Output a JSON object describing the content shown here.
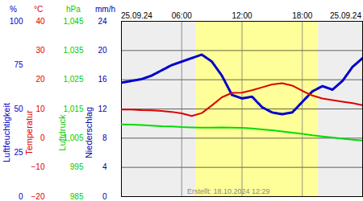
{
  "chart_data": {
    "type": "line",
    "x": [
      0,
      1,
      2,
      3,
      4,
      5,
      6,
      7,
      8,
      9,
      10,
      11,
      12,
      13,
      14,
      15,
      16,
      17,
      18,
      19,
      20,
      21,
      22,
      23,
      24
    ],
    "xlim": [
      0,
      24
    ],
    "xticks": [
      {
        "value": 6,
        "label": "06:00"
      },
      {
        "value": 12,
        "label": "12:00"
      },
      {
        "value": 18,
        "label": "18:00"
      }
    ],
    "date_labels": [
      "25.09.24",
      "25.09.24"
    ],
    "caption": "Erstellt: 18.10.2024 12:29",
    "daylight": {
      "start": 7.4,
      "end": 19.6
    },
    "grid": true,
    "y_axes": [
      {
        "label": "Luftfeuchtigkeit",
        "unit": "%",
        "color": "#0000cc",
        "ylim": [
          0,
          100
        ],
        "yticks": [
          0,
          25,
          50,
          75,
          100
        ]
      },
      {
        "label": "Temperatur",
        "unit": "°C",
        "color": "#dd0000",
        "ylim": [
          -20,
          40
        ],
        "yticks": [
          -20,
          -10,
          0,
          10,
          20,
          30,
          40
        ]
      },
      {
        "label": "Luftdruck",
        "unit": "hPa",
        "color": "#00cc00",
        "ylim": [
          985,
          1045
        ],
        "yticks": [
          985,
          995,
          1005,
          1015,
          1025,
          1035,
          1045
        ]
      },
      {
        "label": "Niederschlag",
        "unit": "mm/h",
        "color": "#0000aa",
        "ylim": [
          0,
          24
        ],
        "yticks": [
          0,
          4,
          8,
          12,
          16,
          20,
          24
        ]
      }
    ],
    "series": [
      {
        "name": "Luftfeuchtigkeit",
        "axis": 0,
        "color": "#0000cc",
        "line_style": "dotted",
        "values": [
          65,
          66,
          67,
          69,
          72,
          75,
          77,
          79,
          81,
          77,
          69,
          58,
          56,
          57,
          51,
          48,
          47,
          48,
          54,
          60,
          63,
          61,
          66,
          74,
          79
        ]
      },
      {
        "name": "Temperatur",
        "axis": 1,
        "color": "#dd0000",
        "line_style": "solid",
        "values": [
          9.8,
          9.8,
          9.6,
          9.5,
          9.3,
          9.0,
          8.5,
          7.6,
          8.6,
          11.2,
          14.0,
          15.5,
          15.6,
          16.4,
          17.4,
          18.4,
          18.8,
          18.0,
          16.2,
          14.6,
          13.6,
          13.0,
          12.5,
          12.0,
          11.3
        ]
      },
      {
        "name": "Luftdruck",
        "axis": 2,
        "color": "#00dd00",
        "line_style": "solid",
        "values": [
          1009.7,
          1009.6,
          1009.5,
          1009.3,
          1009.1,
          1009.0,
          1008.8,
          1008.7,
          1008.6,
          1008.6,
          1008.7,
          1008.6,
          1008.5,
          1008.3,
          1008.0,
          1007.7,
          1007.3,
          1006.9,
          1006.5,
          1006.0,
          1005.6,
          1005.2,
          1004.8,
          1004.5,
          1004.2
        ]
      }
    ]
  }
}
